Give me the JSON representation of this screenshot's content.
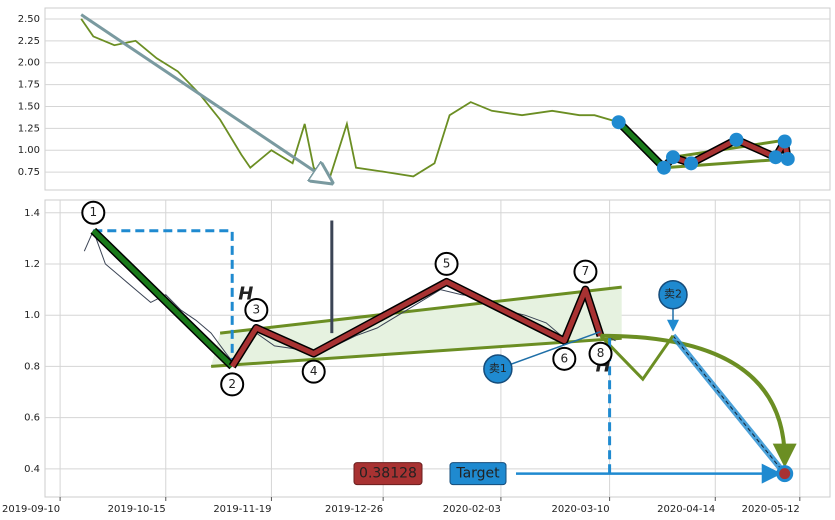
{
  "chart_data": [
    {
      "type": "line",
      "grid": true,
      "color": "#6b8e23",
      "xlim": [
        "2019-09-05",
        "2020-05-22"
      ],
      "ylim": [
        0.545,
        2.625
      ],
      "yticks": [
        {
          "value": 2.5,
          "label": "2.50"
        },
        {
          "value": 2.25,
          "label": "2.25"
        },
        {
          "value": 2.0,
          "label": "2.00"
        },
        {
          "value": 1.75,
          "label": "1.75"
        },
        {
          "value": 1.5,
          "label": "1.50"
        },
        {
          "value": 1.25,
          "label": "1.25"
        },
        {
          "value": 1.0,
          "label": "1.00"
        },
        {
          "value": 0.75,
          "label": "0.75"
        }
      ],
      "x": [
        "2019-09-17",
        "2019-09-21",
        "2019-09-28",
        "2019-10-05",
        "2019-10-12",
        "2019-10-19",
        "2019-10-26",
        "2019-11-02",
        "2019-11-09",
        "2019-11-12",
        "2019-11-19",
        "2019-11-26",
        "2019-11-30",
        "2019-12-03",
        "2019-12-08",
        "2019-12-14",
        "2019-12-17",
        "2019-12-27",
        "2020-01-05",
        "2020-01-12",
        "2020-01-17",
        "2020-01-24",
        "2020-01-31",
        "2020-02-10",
        "2020-02-20",
        "2020-02-29",
        "2020-03-05",
        "2020-03-13"
      ],
      "values": [
        2.5,
        2.3,
        2.2,
        2.25,
        2.05,
        1.9,
        1.65,
        1.35,
        0.95,
        0.8,
        1.0,
        0.85,
        1.3,
        0.8,
        0.65,
        1.3,
        0.8,
        0.75,
        0.7,
        0.85,
        1.4,
        1.55,
        1.45,
        1.4,
        1.45,
        1.4,
        1.4,
        1.32
      ],
      "trend_arrow": {
        "x": [
          "2019-09-17",
          "2019-12-08"
        ],
        "values": [
          2.55,
          0.65
        ]
      },
      "down_leg": {
        "x": [
          "2020-03-13",
          "2020-03-28"
        ],
        "values": [
          1.32,
          0.8
        ],
        "color": "#1a7a1a"
      },
      "pattern": {
        "x": [
          "2020-03-28",
          "2020-03-31",
          "2020-04-06",
          "2020-04-21",
          "2020-05-04",
          "2020-05-07",
          "2020-05-08"
        ],
        "values": [
          0.8,
          0.92,
          0.85,
          1.12,
          0.92,
          1.1,
          0.9
        ],
        "color": "#a83232"
      },
      "upper_trend": {
        "x": [
          "2020-03-31",
          "2020-05-08"
        ],
        "values": [
          0.92,
          1.12
        ]
      },
      "lower_trend": {
        "x": [
          "2020-03-28",
          "2020-05-08"
        ],
        "values": [
          0.8,
          0.9
        ]
      },
      "markers": {
        "x": [
          "2020-03-13",
          "2020-03-28",
          "2020-03-31",
          "2020-04-06",
          "2020-04-21",
          "2020-05-04",
          "2020-05-07",
          "2020-05-08"
        ],
        "values": [
          1.32,
          0.8,
          0.92,
          0.85,
          1.12,
          0.92,
          1.1,
          0.9
        ],
        "color": "#1f8ad0"
      }
    },
    {
      "type": "line",
      "grid": true,
      "color": "#3b4455",
      "xlim": [
        "2019-09-05",
        "2020-05-22"
      ],
      "ylim": [
        0.29,
        1.45
      ],
      "xticks": [
        "2019-09-10",
        "2019-10-15",
        "2019-11-19",
        "2019-12-26",
        "2020-02-03",
        "2020-03-10",
        "2020-04-14",
        "2020-05-12"
      ],
      "yticks": [
        1.4,
        1.2,
        {
          "value": 1.0,
          "label": "1.0"
        },
        0.8,
        0.6,
        0.4
      ],
      "x": [
        "2019-09-18",
        "2019-09-21",
        "2019-09-25",
        "2019-09-30",
        "2019-10-05",
        "2019-10-10",
        "2019-10-15",
        "2019-10-20",
        "2019-10-25",
        "2019-10-30",
        "2019-11-04",
        "2019-11-06",
        "2019-11-10",
        "2019-11-14",
        "2019-11-20",
        "2019-11-26",
        "2019-12-03",
        "2019-12-10",
        "2019-12-17",
        "2019-12-24",
        "2019-12-31",
        "2020-01-07",
        "2020-01-14",
        "2020-01-21",
        "2020-01-28",
        "2020-02-04",
        "2020-02-11",
        "2020-02-18",
        "2020-02-24",
        "2020-03-02",
        "2020-03-07",
        "2020-03-12"
      ],
      "values": [
        1.25,
        1.33,
        1.2,
        1.15,
        1.1,
        1.05,
        1.08,
        1.02,
        0.98,
        0.93,
        0.85,
        0.82,
        0.9,
        0.93,
        0.88,
        0.87,
        0.85,
        0.88,
        0.92,
        0.95,
        1.0,
        1.05,
        1.1,
        1.08,
        1.07,
        1.02,
        1.0,
        0.97,
        0.91,
        1.08,
        0.93,
        0.9
      ],
      "trend_color": "#6b8e23",
      "upper_trend": {
        "x": [
          "2019-11-02",
          "2020-03-14"
        ],
        "values": [
          0.93,
          1.11
        ]
      },
      "lower_trend": {
        "x": [
          "2019-10-30",
          "2020-03-14"
        ],
        "values": [
          0.8,
          0.91
        ]
      },
      "down_leg": {
        "x": [
          "2019-09-21",
          "2019-11-06"
        ],
        "values": [
          1.33,
          0.8
        ],
        "color": "#1a7a1a"
      },
      "pattern": {
        "x": [
          "2019-11-06",
          "2019-11-14",
          "2019-12-03",
          "2020-01-16",
          "2020-02-24",
          "2020-03-02",
          "2020-03-07"
        ],
        "values": [
          0.8,
          0.95,
          0.85,
          1.13,
          0.9,
          1.1,
          0.92
        ],
        "color": "#a83232"
      },
      "points": {
        "labels": [
          "1",
          "2",
          "3",
          "4",
          "5",
          "6",
          "7",
          "8"
        ],
        "x": [
          "2019-09-21",
          "2019-11-06",
          "2019-11-14",
          "2019-12-03",
          "2020-01-16",
          "2020-02-24",
          "2020-03-02",
          "2020-03-07"
        ],
        "values": [
          1.33,
          0.8,
          0.95,
          0.85,
          1.13,
          0.9,
          1.1,
          0.92
        ]
      },
      "height_marker": {
        "label": "H",
        "x": [
          "2019-09-21",
          "2019-11-06"
        ],
        "values": [
          1.33,
          0.8
        ]
      },
      "spike": {
        "x": "2019-12-09",
        "values": [
          0.93,
          1.37
        ]
      },
      "projection": {
        "x": [
          "2020-03-07",
          "2020-03-21",
          "2020-03-31"
        ],
        "values": [
          0.92,
          0.75,
          0.92
        ]
      },
      "sell_points": [
        {
          "label": "卖1",
          "x": "2020-02-02",
          "value": 0.79
        },
        {
          "label": "卖2",
          "x": "2020-03-31",
          "value": 1.08
        }
      ],
      "target_h": {
        "label": "H",
        "x": "2020-03-10",
        "value": 0.91
      },
      "target": {
        "value": 0.38128,
        "label": "Target",
        "start": "2020-02-08",
        "end": "2020-05-07"
      }
    }
  ]
}
